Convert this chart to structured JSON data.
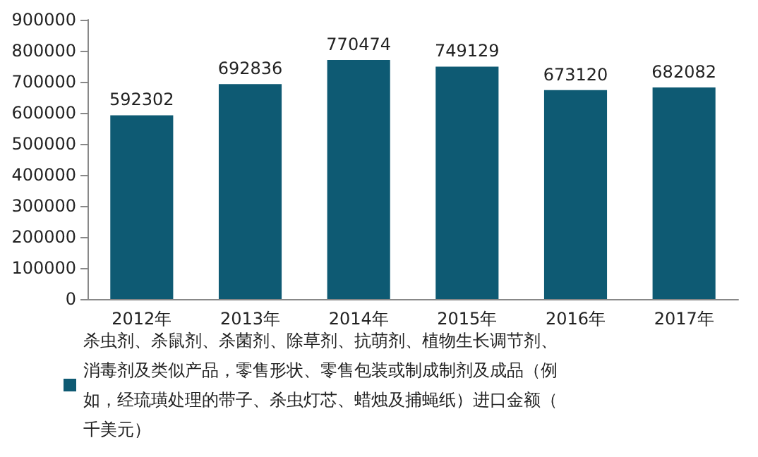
{
  "chart_data": {
    "type": "bar",
    "categories": [
      "2012年",
      "2013年",
      "2014年",
      "2015年",
      "2016年",
      "2017年"
    ],
    "series": [
      {
        "name": "杀虫剂、杀鼠剂、杀菌剂、除草剂、抗萌剂、植物生长调节剂、消毒剂及类似产品，零售形状、零售包装或制成制剂及成品（例如，经琉璜处理的带子、杀虫灯芯、蜡烛及捕蝇纸）进口金额（千美元）",
        "color": "#0e5a73",
        "values": [
          592302,
          692836,
          770474,
          749129,
          673120,
          682082
        ]
      }
    ],
    "ylim": [
      0,
      900000
    ],
    "yticks": [
      0,
      100000,
      200000,
      300000,
      400000,
      500000,
      600000,
      700000,
      800000,
      900000
    ],
    "data_labels": true,
    "grid": false,
    "legend": "bottom"
  }
}
